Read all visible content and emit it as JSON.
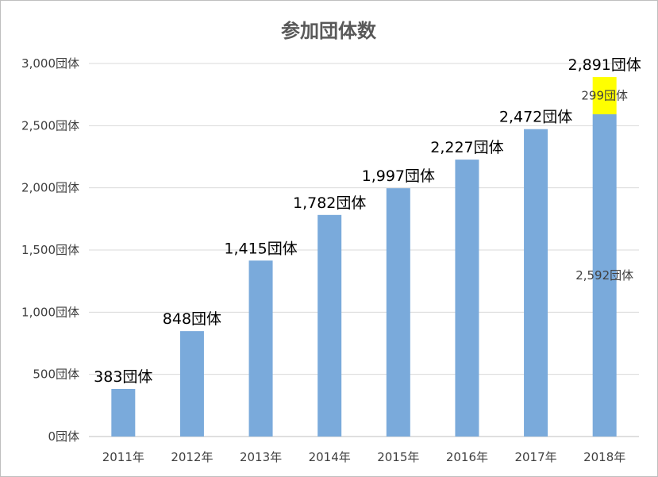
{
  "chart_data": {
    "type": "bar",
    "title": "参加団体数",
    "xlabel": "",
    "ylabel": "",
    "ylim": [
      0,
      3000
    ],
    "grid": true,
    "legend": "none",
    "categories": [
      "2011年",
      "2012年",
      "2013年",
      "2014年",
      "2015年",
      "2016年",
      "2017年",
      "2018年"
    ],
    "y_tick_values": [
      0,
      500,
      1000,
      1500,
      2000,
      2500,
      3000
    ],
    "y_tick_labels": [
      "0団体",
      "500団体",
      "1,000団体",
      "1,500団体",
      "2,000団体",
      "2,500団体",
      "3,000団体"
    ],
    "series": [
      {
        "values": [
          383,
          848,
          1415,
          1782,
          1997,
          2227,
          2472,
          2592
        ],
        "color": "#7aaadb"
      },
      {
        "values": [
          0,
          0,
          0,
          0,
          0,
          0,
          0,
          299
        ],
        "color": "#ffff00"
      }
    ],
    "total_labels": [
      "383団体",
      "848団体",
      "1,415団体",
      "1,782団体",
      "1,997団体",
      "2,227団体",
      "2,472団体",
      "2,891団体"
    ],
    "segment_labels": [
      {
        "index": 7,
        "series": 0,
        "text": "2,592団体"
      },
      {
        "index": 7,
        "series": 1,
        "text": "299団体"
      }
    ]
  }
}
